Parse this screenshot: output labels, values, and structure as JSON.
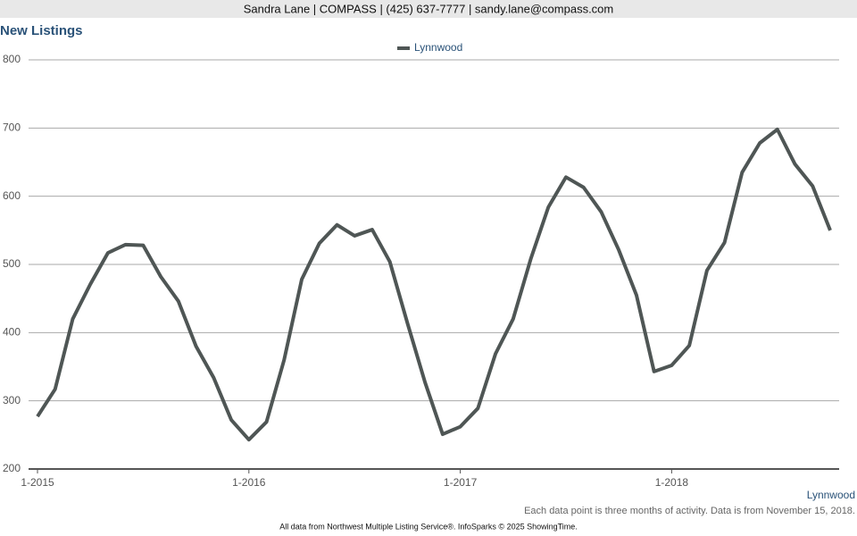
{
  "header": "Sandra Lane | COMPASS | (425) 637-7777 | sandy.lane@compass.com",
  "chart_data": {
    "type": "line",
    "title": "New Listings",
    "categories": [
      "1-2015",
      null,
      null,
      null,
      null,
      null,
      null,
      null,
      null,
      null,
      null,
      null,
      "1-2016",
      null,
      null,
      null,
      null,
      null,
      null,
      null,
      null,
      null,
      null,
      null,
      "1-2017",
      null,
      null,
      null,
      null,
      null,
      null,
      null,
      null,
      null,
      null,
      null,
      "1-2018",
      null,
      null,
      null,
      null,
      null,
      null,
      null,
      null,
      null
    ],
    "series": [
      {
        "name": "Lynnwood",
        "color": "#4f5655",
        "values": [
          277,
          317,
          420,
          471,
          517,
          529,
          528,
          482,
          446,
          380,
          334,
          272,
          243,
          269,
          360,
          478,
          531,
          558,
          542,
          551,
          504,
          414,
          327,
          251,
          262,
          289,
          369,
          420,
          508,
          584,
          628,
          613,
          577,
          521,
          455,
          343,
          352,
          381,
          491,
          532,
          635,
          678,
          698,
          647,
          615,
          550
        ]
      }
    ],
    "ylim": [
      200,
      800
    ],
    "yticks": [
      200,
      300,
      400,
      500,
      600,
      700,
      800
    ],
    "grid": true
  },
  "note": "Each data point is three months of activity. Data is from November 15, 2018.",
  "source": "All data from Northwest Multiple Listing Service®. InfoSparks © 2025 ShowingTime."
}
